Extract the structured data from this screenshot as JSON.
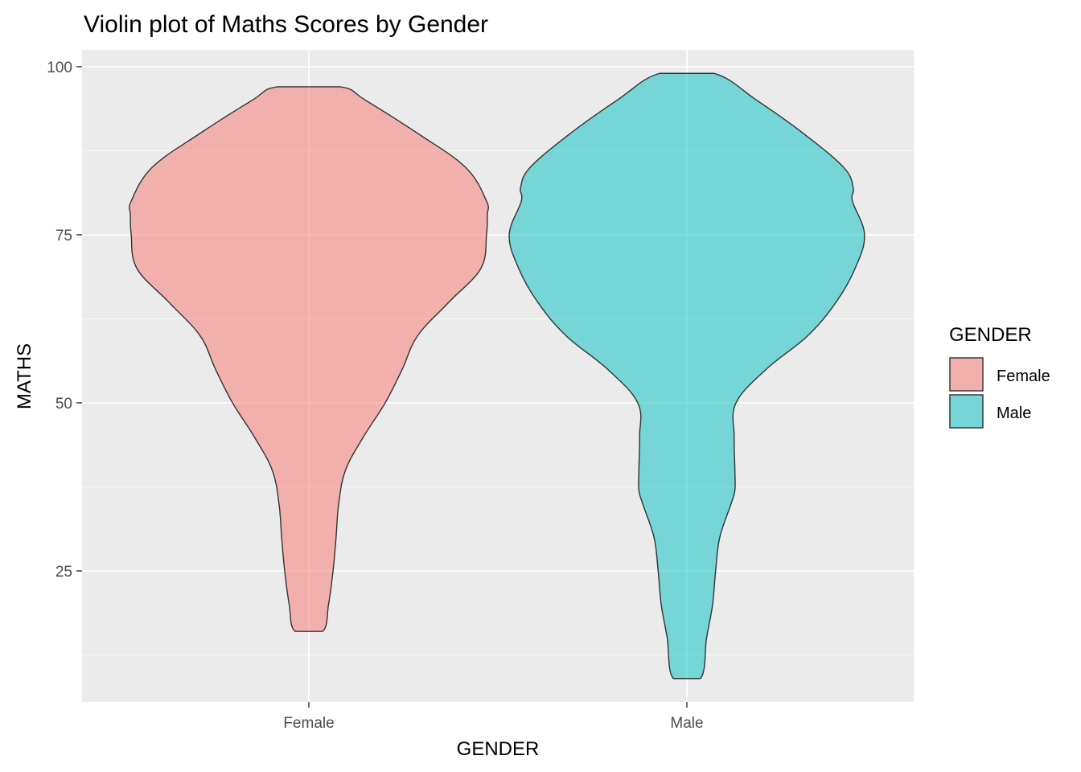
{
  "chart_data": {
    "type": "violin",
    "title": "Violin plot of Maths Scores by Gender",
    "xlabel": "GENDER",
    "ylabel": "MATHS",
    "categories": [
      "Female",
      "Male"
    ],
    "ylim": [
      5.5,
      102.5
    ],
    "yticks": [
      25,
      50,
      75,
      100
    ],
    "grid": true,
    "legend": {
      "title": "GENDER",
      "position": "right"
    },
    "colors": {
      "Female": "#F8766D",
      "Male": "#00BFC4"
    },
    "panel_background": "#EBEBEB",
    "series": [
      {
        "name": "Female",
        "profile": [
          [
            16,
            0.036
          ],
          [
            20,
            0.052
          ],
          [
            25,
            0.064
          ],
          [
            30,
            0.072
          ],
          [
            35,
            0.079
          ],
          [
            40,
            0.097
          ],
          [
            45,
            0.145
          ],
          [
            50,
            0.202
          ],
          [
            55,
            0.247
          ],
          [
            60,
            0.288
          ],
          [
            65,
            0.371
          ],
          [
            70,
            0.455
          ],
          [
            75,
            0.47
          ],
          [
            78,
            0.472
          ],
          [
            80,
            0.47
          ],
          [
            85,
            0.415
          ],
          [
            90,
            0.29
          ],
          [
            95,
            0.15
          ],
          [
            97,
            0.083
          ]
        ]
      },
      {
        "name": "Male",
        "profile": [
          [
            9,
            0.036
          ],
          [
            15,
            0.052
          ],
          [
            20,
            0.068
          ],
          [
            25,
            0.076
          ],
          [
            30,
            0.087
          ],
          [
            35,
            0.117
          ],
          [
            37,
            0.127
          ],
          [
            40,
            0.127
          ],
          [
            45,
            0.125
          ],
          [
            50,
            0.13
          ],
          [
            55,
            0.21
          ],
          [
            60,
            0.32
          ],
          [
            65,
            0.395
          ],
          [
            70,
            0.445
          ],
          [
            75,
            0.47
          ],
          [
            80,
            0.438
          ],
          [
            82,
            0.44
          ],
          [
            85,
            0.415
          ],
          [
            90,
            0.31
          ],
          [
            95,
            0.185
          ],
          [
            99,
            0.072
          ]
        ]
      }
    ]
  }
}
